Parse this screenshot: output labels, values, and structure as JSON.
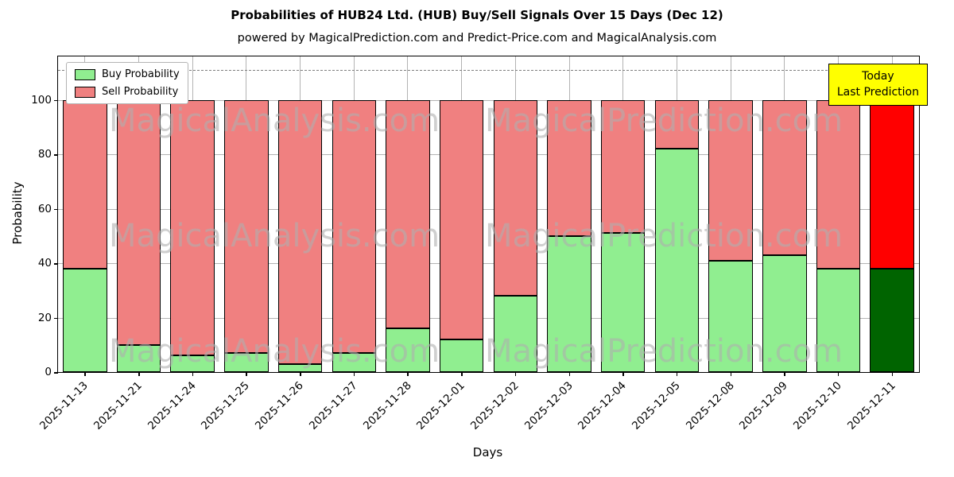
{
  "figure": {
    "title": "Probabilities of HUB24 Ltd. (HUB) Buy/Sell Signals Over 15 Days (Dec 12)",
    "subtitle": "powered by MagicalPrediction.com and Predict-Price.com and MagicalAnalysis.com"
  },
  "legend": {
    "buy": "Buy Probability",
    "sell": "Sell Probability"
  },
  "annotation": {
    "line1": "Today",
    "line2": "Last Prediction"
  },
  "watermarks": [
    "MagicalAnalysis.com",
    "MagicalPrediction.com"
  ],
  "colors": {
    "buy": "#90EE90",
    "sell": "#F08080",
    "buy_today": "#006400",
    "sell_today": "#FF0000",
    "annotation_bg": "#FFFF00",
    "grid": "#B3B3B3",
    "dashed_line": "#7F7F7F"
  },
  "chart_data": {
    "type": "bar",
    "stacked": true,
    "title": "Probabilities of HUB24 Ltd. (HUB) Buy/Sell Signals Over 15 Days (Dec 12)",
    "subtitle": "powered by MagicalPrediction.com and Predict-Price.com and MagicalAnalysis.com",
    "xlabel": "Days",
    "ylabel": "Probability",
    "ylim": [
      0,
      116
    ],
    "yticks": [
      0,
      20,
      40,
      60,
      80,
      100
    ],
    "dashed_line_y": 111,
    "grid": true,
    "legend_position": "upper left",
    "categories": [
      "2025-11-13",
      "2025-11-21",
      "2025-11-24",
      "2025-11-25",
      "2025-11-26",
      "2025-11-27",
      "2025-11-28",
      "2025-12-01",
      "2025-12-02",
      "2025-12-03",
      "2025-12-04",
      "2025-12-05",
      "2025-12-08",
      "2025-12-09",
      "2025-12-10",
      "2025-12-11"
    ],
    "series": [
      {
        "name": "Buy Probability",
        "color": "#90EE90",
        "last_color": "#006400",
        "values": [
          38,
          10,
          6,
          7,
          3,
          7,
          16,
          12,
          28,
          50,
          51,
          82,
          41,
          43,
          38,
          38
        ]
      },
      {
        "name": "Sell Probability",
        "color": "#F08080",
        "last_color": "#FF0000",
        "values": [
          62,
          90,
          94,
          93,
          97,
          93,
          84,
          88,
          72,
          50,
          49,
          18,
          59,
          57,
          62,
          62
        ]
      }
    ]
  }
}
